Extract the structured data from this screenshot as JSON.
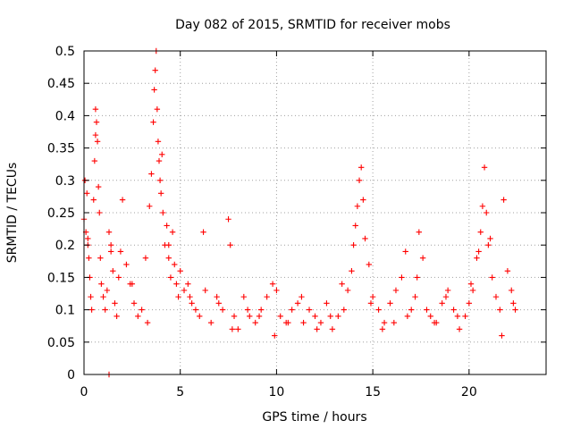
{
  "chart_data": {
    "type": "scatter",
    "title": "Day 082 of 2015, SRMTID for receiver mobs",
    "xlabel": "GPS time / hours",
    "ylabel": "SRMTID / TECUs",
    "xlim": [
      0,
      24
    ],
    "ylim": [
      0,
      0.5
    ],
    "grid": true,
    "marker": "+",
    "color": "#ff0000",
    "x_ticks": [
      0,
      5,
      10,
      15,
      20
    ],
    "x_tick_labels": [
      "0",
      "5",
      "10",
      "15",
      "20"
    ],
    "y_ticks": [
      0,
      0.05,
      0.1,
      0.15,
      0.2,
      0.25,
      0.3,
      0.35,
      0.4,
      0.45,
      0.5
    ],
    "y_tick_labels": [
      "0",
      "0.05",
      "0.1",
      "0.15",
      "0.2",
      "0.25",
      "0.3",
      "0.35",
      "0.4",
      "0.45",
      "0.5"
    ],
    "series": [
      {
        "name": "SRMTID",
        "x": [
          0.0,
          0.05,
          0.1,
          0.15,
          0.2,
          0.25,
          0.3,
          0.35,
          0.4,
          0.5,
          0.55,
          0.6,
          0.65,
          0.7,
          0.75,
          0.8,
          0.85,
          0.9,
          1.0,
          1.1,
          1.2,
          1.3,
          1.4,
          1.5,
          1.6,
          1.7,
          1.8,
          1.9,
          2.0,
          2.2,
          2.4,
          2.6,
          2.8,
          3.0,
          3.2,
          3.4,
          3.5,
          3.6,
          3.65,
          3.7,
          3.75,
          3.8,
          3.85,
          3.9,
          3.95,
          4.0,
          4.05,
          4.1,
          4.2,
          4.3,
          4.4,
          4.5,
          4.6,
          4.7,
          4.8,
          4.9,
          5.0,
          5.2,
          5.4,
          5.6,
          5.8,
          6.0,
          6.3,
          6.6,
          6.9,
          7.2,
          7.5,
          7.6,
          7.8,
          8.0,
          8.3,
          8.6,
          8.9,
          9.2,
          9.5,
          9.8,
          10.0,
          10.2,
          10.5,
          10.8,
          11.1,
          11.4,
          11.7,
          12.0,
          12.3,
          12.6,
          12.9,
          13.2,
          13.5,
          13.7,
          13.9,
          14.0,
          14.1,
          14.2,
          14.3,
          14.4,
          14.5,
          14.6,
          14.8,
          15.0,
          15.3,
          15.6,
          15.9,
          16.2,
          16.5,
          16.8,
          17.0,
          17.2,
          17.4,
          17.6,
          17.8,
          18.0,
          18.3,
          18.6,
          18.9,
          19.2,
          19.5,
          19.8,
          20.0,
          20.2,
          20.4,
          20.6,
          20.7,
          20.8,
          20.9,
          21.0,
          21.2,
          21.4,
          21.6,
          21.8,
          22.0,
          22.2,
          22.4,
          0.2,
          0.6,
          1.4,
          2.5,
          3.3,
          4.4,
          5.5,
          6.2,
          7.0,
          7.7,
          8.5,
          9.1,
          9.9,
          10.6,
          11.3,
          12.1,
          12.8,
          13.4,
          14.9,
          15.5,
          16.1,
          16.7,
          17.3,
          18.2,
          18.8,
          19.4,
          20.1,
          20.5,
          21.1,
          21.7,
          22.3,
          1.3
        ],
        "y": [
          0.24,
          0.3,
          0.22,
          0.28,
          0.2,
          0.18,
          0.15,
          0.12,
          0.1,
          0.27,
          0.33,
          0.41,
          0.39,
          0.36,
          0.29,
          0.25,
          0.18,
          0.14,
          0.12,
          0.1,
          0.13,
          0.22,
          0.2,
          0.16,
          0.11,
          0.09,
          0.15,
          0.19,
          0.27,
          0.17,
          0.14,
          0.11,
          0.09,
          0.1,
          0.18,
          0.26,
          0.31,
          0.39,
          0.44,
          0.47,
          0.5,
          0.41,
          0.36,
          0.33,
          0.3,
          0.28,
          0.34,
          0.25,
          0.2,
          0.23,
          0.18,
          0.15,
          0.22,
          0.17,
          0.14,
          0.12,
          0.16,
          0.13,
          0.14,
          0.11,
          0.1,
          0.09,
          0.13,
          0.08,
          0.12,
          0.1,
          0.24,
          0.2,
          0.09,
          0.07,
          0.12,
          0.09,
          0.08,
          0.1,
          0.12,
          0.14,
          0.13,
          0.09,
          0.08,
          0.1,
          0.11,
          0.08,
          0.1,
          0.09,
          0.08,
          0.11,
          0.07,
          0.09,
          0.1,
          0.13,
          0.16,
          0.2,
          0.23,
          0.26,
          0.3,
          0.32,
          0.27,
          0.21,
          0.17,
          0.12,
          0.1,
          0.08,
          0.11,
          0.13,
          0.15,
          0.09,
          0.1,
          0.12,
          0.22,
          0.18,
          0.1,
          0.09,
          0.08,
          0.11,
          0.13,
          0.1,
          0.07,
          0.09,
          0.11,
          0.13,
          0.18,
          0.22,
          0.26,
          0.32,
          0.25,
          0.2,
          0.15,
          0.12,
          0.1,
          0.27,
          0.16,
          0.13,
          0.1,
          0.21,
          0.37,
          0.19,
          0.14,
          0.08,
          0.2,
          0.12,
          0.22,
          0.11,
          0.07,
          0.1,
          0.09,
          0.06,
          0.08,
          0.12,
          0.07,
          0.09,
          0.14,
          0.11,
          0.07,
          0.08,
          0.19,
          0.15,
          0.08,
          0.12,
          0.09,
          0.14,
          0.19,
          0.21,
          0.06,
          0.11,
          0.0
        ]
      }
    ]
  }
}
